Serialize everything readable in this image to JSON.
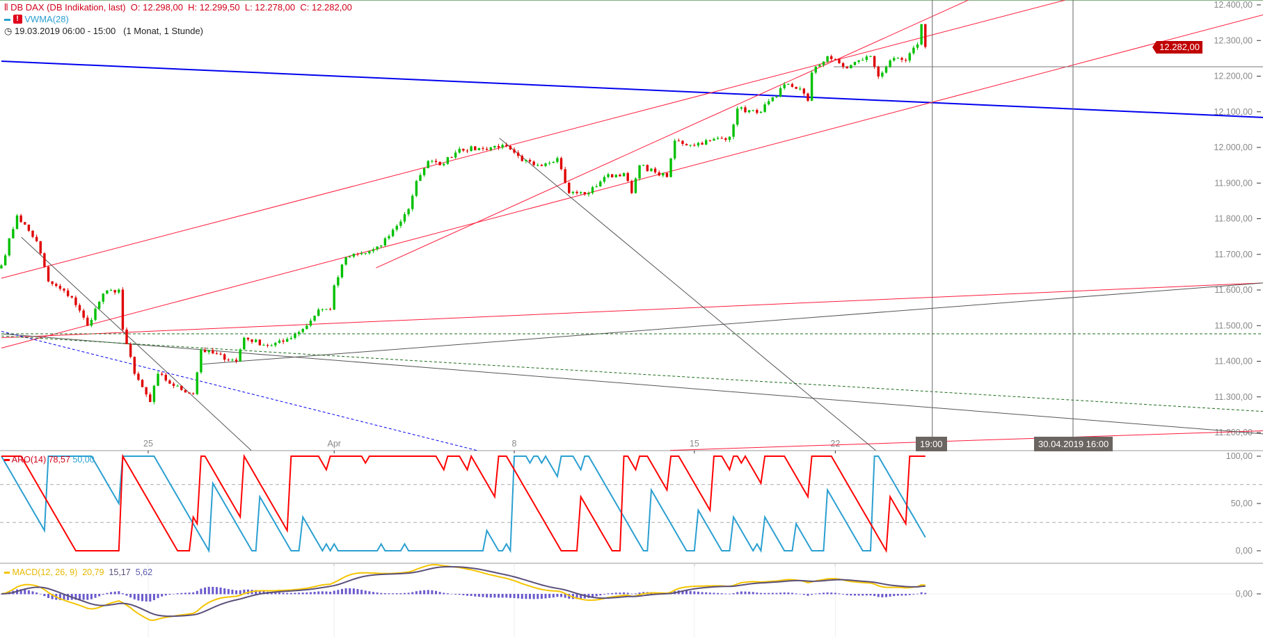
{
  "header": {
    "instrument": "DB DAX (DB Indikation, last)",
    "ohlc": "O: 12.298,00  H: 12.299,50  L: 12.278,00  C: 12.282,00",
    "indicator": "VWMA(28)",
    "range": "19.03.2019 06:00 - 15:00",
    "range_note": "(1 Monat, 1 Stunde)",
    "icons": [
      "candlestick-icon",
      "warning-icon",
      "clock-icon"
    ]
  },
  "crosshair": {
    "time_label": "19:00",
    "date_label": "30.04.2019 16:00"
  },
  "last_price_label": "12.282,00",
  "aro_legend": {
    "name": "ARO(14)",
    "up": "78,57",
    "down": "50,00"
  },
  "macd_legend": {
    "name": "MACD(12, 26, 9)",
    "macd": "20,79",
    "signal": "15,17",
    "hist": "5,62"
  },
  "colors": {
    "up": "#00c000",
    "down": "#e00000",
    "aro_up": "#ff0000",
    "aro_down": "#2a9fd0",
    "macd": "#f5c400",
    "signal": "#5a4f7a",
    "hist": "#6a5acd",
    "trend_blue": "#0000ee",
    "trend_red": "#ff1a3a",
    "trend_gray": "#555555",
    "dash_green": "#1a6b1a"
  },
  "chart_data": {
    "type": "candlestick",
    "y_ticks": [
      "12.400,00",
      "12.300,00",
      "12.200,00",
      "12.100,00",
      "12.000,00",
      "11.900,00",
      "11.800,00",
      "11.700,00",
      "11.600,00",
      "11.500,00",
      "11.400,00",
      "11.300,00",
      "11.200,00"
    ],
    "y_tick_values": [
      12400,
      12300,
      12200,
      12100,
      12000,
      11900,
      11800,
      11700,
      11600,
      11500,
      11400,
      11300,
      11200
    ],
    "ylim": [
      11175,
      12410
    ],
    "x_ticks": [
      {
        "bar": 37.5,
        "label": "25"
      },
      {
        "bar": 85,
        "label": "Apr"
      },
      {
        "bar": 131,
        "label": "8"
      },
      {
        "bar": 177,
        "label": "15"
      },
      {
        "bar": 213,
        "label": "22"
      }
    ],
    "xlim_bars": [
      0,
      322.6
    ],
    "close_path": [
      [
        0,
        11669
      ],
      [
        4,
        11809
      ],
      [
        9,
        11737
      ],
      [
        12,
        11624
      ],
      [
        18,
        11579
      ],
      [
        22,
        11500
      ],
      [
        26,
        11590
      ],
      [
        30,
        11601
      ],
      [
        31,
        11489
      ],
      [
        34,
        11365
      ],
      [
        38,
        11286
      ],
      [
        40,
        11365
      ],
      [
        44,
        11331
      ],
      [
        49,
        11308
      ],
      [
        51,
        11432
      ],
      [
        60,
        11400
      ],
      [
        62,
        11466
      ],
      [
        68,
        11444
      ],
      [
        72,
        11455
      ],
      [
        78,
        11500
      ],
      [
        81,
        11545
      ],
      [
        84,
        11545
      ],
      [
        85,
        11613
      ],
      [
        88,
        11692
      ],
      [
        93,
        11703
      ],
      [
        97,
        11725
      ],
      [
        101,
        11780
      ],
      [
        104,
        11827
      ],
      [
        106,
        11906
      ],
      [
        109,
        11962
      ],
      [
        112,
        11950
      ],
      [
        117,
        11996
      ],
      [
        123,
        11996
      ],
      [
        128,
        12007
      ],
      [
        133,
        11962
      ],
      [
        137,
        11951
      ],
      [
        142,
        11970
      ],
      [
        145,
        11872
      ],
      [
        150,
        11872
      ],
      [
        154,
        11917
      ],
      [
        159,
        11928
      ],
      [
        161,
        11872
      ],
      [
        163,
        11950
      ],
      [
        167,
        11930
      ],
      [
        170,
        11917
      ],
      [
        172,
        12019
      ],
      [
        176,
        12007
      ],
      [
        181,
        12019
      ],
      [
        186,
        12030
      ],
      [
        188,
        12109
      ],
      [
        193,
        12097
      ],
      [
        198,
        12143
      ],
      [
        200,
        12177
      ],
      [
        204,
        12165
      ],
      [
        206,
        12131
      ],
      [
        207,
        12210
      ],
      [
        211,
        12256
      ],
      [
        216,
        12222
      ],
      [
        219,
        12244
      ],
      [
        222,
        12256
      ],
      [
        224,
        12199
      ],
      [
        227,
        12244
      ],
      [
        231,
        12244
      ],
      [
        234,
        12289
      ],
      [
        235,
        12346
      ],
      [
        236,
        12282
      ]
    ],
    "trendlines": [
      {
        "color": "trend_blue",
        "width": 2,
        "from": [
          0,
          12242
        ],
        "to": [
          322.6,
          12084
        ]
      },
      {
        "color": "trend_red",
        "from": [
          0,
          11633
        ],
        "to": [
          271.6,
          12413
        ]
      },
      {
        "color": "trend_red",
        "from": [
          0,
          11437
        ],
        "to": [
          322.6,
          12373
        ]
      },
      {
        "color": "trend_red",
        "from": [
          95.7,
          11662
        ],
        "to": [
          246.9,
          12413
        ]
      },
      {
        "color": "trend_red",
        "from": [
          0,
          11466
        ],
        "to": [
          322.6,
          11620
        ]
      },
      {
        "color": "trend_red",
        "from": [
          170.8,
          11150
        ],
        "to": [
          322.6,
          11205
        ]
      },
      {
        "color": "trend_gray",
        "from": [
          5.1,
          11748
        ],
        "to": [
          63.8,
          11150
        ]
      },
      {
        "color": "trend_gray",
        "from": [
          127.2,
          12026
        ],
        "to": [
          223.3,
          11150
        ]
      },
      {
        "color": "trend_gray",
        "from": [
          0,
          11477
        ],
        "to": [
          322.6,
          11196
        ]
      },
      {
        "color": "trend_gray",
        "from": [
          51.4,
          11392
        ],
        "to": [
          322.6,
          11620
        ]
      },
      {
        "color": "trend_blue",
        "dash": true,
        "from": [
          0,
          11484
        ],
        "to": [
          121.4,
          11150
        ]
      },
      {
        "color": "dash_green",
        "dash": true,
        "from": [
          0,
          11477
        ],
        "to": [
          322.6,
          11477
        ]
      },
      {
        "color": "dash_green",
        "dash": true,
        "from": [
          0,
          11471
        ],
        "to": [
          322.6,
          11259
        ]
      }
    ],
    "aro_ticks": [
      "100,00",
      "50,00",
      "0,00"
    ],
    "macd_ticks": [
      "0,00"
    ]
  }
}
